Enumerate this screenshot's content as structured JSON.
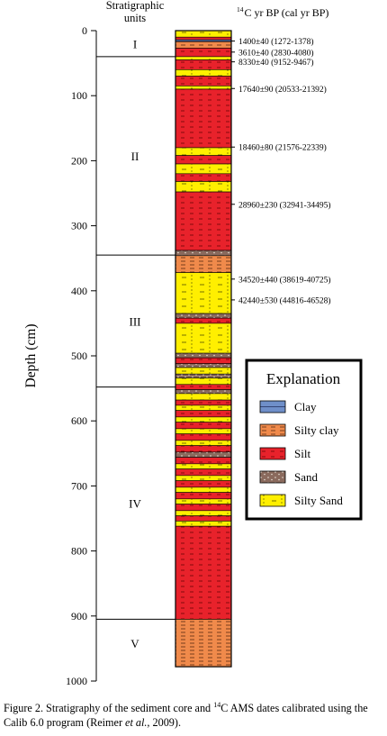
{
  "header": {
    "units_title_line1": "Stratigraphic",
    "units_title_line2": "units",
    "dates_title": "C yr BP (cal yr BP)",
    "dates_title_sup": "14"
  },
  "axis": {
    "label": "Depth (cm)",
    "ticks": [
      "0",
      "100",
      "200",
      "300",
      "400",
      "500",
      "600",
      "700",
      "800",
      "900",
      "1000"
    ],
    "min": 0,
    "max": 1000
  },
  "units": [
    {
      "name": "I",
      "top": 0,
      "bottom": 40
    },
    {
      "name": "II",
      "top": 40,
      "bottom": 345
    },
    {
      "name": "III",
      "top": 345,
      "bottom": 548
    },
    {
      "name": "IV",
      "top": 548,
      "bottom": 905
    },
    {
      "name": "V",
      "top": 905,
      "bottom": 978
    }
  ],
  "dates": [
    {
      "depth": 16,
      "text": "1400±40 (1272-1378)"
    },
    {
      "depth": 33,
      "text": "3610±40 (2830-4080)"
    },
    {
      "depth": 48,
      "text": "8330±40 (9152-9467)"
    },
    {
      "depth": 89,
      "text": "17640±90 (20533-21392)"
    },
    {
      "depth": 179,
      "text": "18460±80 (21576-22339)"
    },
    {
      "depth": 267,
      "text": "28960±230 (32941-34495)"
    },
    {
      "depth": 382,
      "text": "34520±440 (38619-40725)"
    },
    {
      "depth": 414,
      "text": "42440±530 (44816-46528)"
    }
  ],
  "lithology_colors": {
    "clay": "#6f8fc9",
    "silty_clay": "#f08a4b",
    "silt": "#e8222b",
    "sand": "#8a6a5d",
    "silty_sand": "#ffef00"
  },
  "layers": [
    {
      "top": 0,
      "bottom": 10,
      "type": "silty_sand"
    },
    {
      "top": 10,
      "bottom": 14,
      "type": "silt"
    },
    {
      "top": 14,
      "bottom": 17,
      "type": "clay"
    },
    {
      "top": 17,
      "bottom": 27,
      "type": "silty_clay"
    },
    {
      "top": 27,
      "bottom": 40,
      "type": "silt"
    },
    {
      "top": 40,
      "bottom": 45,
      "type": "silty_sand"
    },
    {
      "top": 45,
      "bottom": 60,
      "type": "silt"
    },
    {
      "top": 60,
      "bottom": 70,
      "type": "silty_sand"
    },
    {
      "top": 70,
      "bottom": 85,
      "type": "silt"
    },
    {
      "top": 85,
      "bottom": 90,
      "type": "silty_sand"
    },
    {
      "top": 90,
      "bottom": 180,
      "type": "silt"
    },
    {
      "top": 180,
      "bottom": 192,
      "type": "silty_sand"
    },
    {
      "top": 192,
      "bottom": 205,
      "type": "silt"
    },
    {
      "top": 205,
      "bottom": 220,
      "type": "silty_sand"
    },
    {
      "top": 220,
      "bottom": 232,
      "type": "silt"
    },
    {
      "top": 232,
      "bottom": 248,
      "type": "silty_sand"
    },
    {
      "top": 248,
      "bottom": 338,
      "type": "silt"
    },
    {
      "top": 338,
      "bottom": 346,
      "type": "sand"
    },
    {
      "top": 346,
      "bottom": 372,
      "type": "silty_clay"
    },
    {
      "top": 372,
      "bottom": 435,
      "type": "silty_sand"
    },
    {
      "top": 435,
      "bottom": 442,
      "type": "sand"
    },
    {
      "top": 442,
      "bottom": 450,
      "type": "silt"
    },
    {
      "top": 450,
      "bottom": 496,
      "type": "silty_sand"
    },
    {
      "top": 496,
      "bottom": 503,
      "type": "sand"
    },
    {
      "top": 503,
      "bottom": 512,
      "type": "silt"
    },
    {
      "top": 512,
      "bottom": 518,
      "type": "sand"
    },
    {
      "top": 518,
      "bottom": 528,
      "type": "silty_sand"
    },
    {
      "top": 528,
      "bottom": 534,
      "type": "sand"
    },
    {
      "top": 534,
      "bottom": 544,
      "type": "silty_sand"
    },
    {
      "top": 544,
      "bottom": 552,
      "type": "silt"
    },
    {
      "top": 552,
      "bottom": 558,
      "type": "sand"
    },
    {
      "top": 558,
      "bottom": 568,
      "type": "silty_sand"
    },
    {
      "top": 568,
      "bottom": 576,
      "type": "silt"
    },
    {
      "top": 576,
      "bottom": 584,
      "type": "silty_sand"
    },
    {
      "top": 584,
      "bottom": 594,
      "type": "silt"
    },
    {
      "top": 594,
      "bottom": 602,
      "type": "silty_sand"
    },
    {
      "top": 602,
      "bottom": 612,
      "type": "silt"
    },
    {
      "top": 612,
      "bottom": 620,
      "type": "silty_sand"
    },
    {
      "top": 620,
      "bottom": 630,
      "type": "silt"
    },
    {
      "top": 630,
      "bottom": 638,
      "type": "silty_sand"
    },
    {
      "top": 638,
      "bottom": 648,
      "type": "silt"
    },
    {
      "top": 648,
      "bottom": 656,
      "type": "sand"
    },
    {
      "top": 656,
      "bottom": 666,
      "type": "silt"
    },
    {
      "top": 666,
      "bottom": 674,
      "type": "silty_sand"
    },
    {
      "top": 674,
      "bottom": 684,
      "type": "silt"
    },
    {
      "top": 684,
      "bottom": 692,
      "type": "silty_sand"
    },
    {
      "top": 692,
      "bottom": 702,
      "type": "silt"
    },
    {
      "top": 702,
      "bottom": 710,
      "type": "silty_sand"
    },
    {
      "top": 710,
      "bottom": 720,
      "type": "silt"
    },
    {
      "top": 720,
      "bottom": 728,
      "type": "silty_sand"
    },
    {
      "top": 728,
      "bottom": 738,
      "type": "silt"
    },
    {
      "top": 738,
      "bottom": 746,
      "type": "silty_sand"
    },
    {
      "top": 746,
      "bottom": 754,
      "type": "silt"
    },
    {
      "top": 754,
      "bottom": 762,
      "type": "silty_sand"
    },
    {
      "top": 762,
      "bottom": 905,
      "type": "silt"
    },
    {
      "top": 905,
      "bottom": 978,
      "type": "silty_clay"
    }
  ],
  "legend": {
    "title": "Explanation",
    "items": [
      {
        "type": "clay",
        "label": "Clay"
      },
      {
        "type": "silty_clay",
        "label": "Silty clay"
      },
      {
        "type": "silt",
        "label": "Silt"
      },
      {
        "type": "sand",
        "label": "Sand"
      },
      {
        "type": "silty_sand",
        "label": "Silty Sand"
      }
    ]
  },
  "caption": {
    "part1": "Figure 2. Stratigraphy of the sediment core and ",
    "sup": "14",
    "part2": "C AMS dates calibrated using the Calib 6.0 program (Reimer ",
    "italic": "et al.,",
    "part3": " 2009)."
  }
}
